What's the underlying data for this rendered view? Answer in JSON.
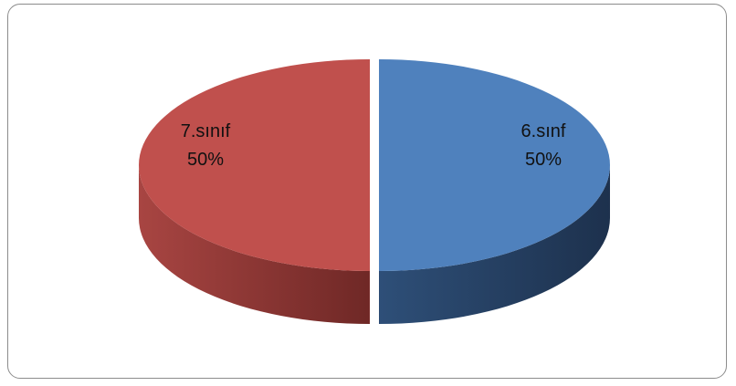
{
  "chart_data": {
    "type": "pie",
    "title": "",
    "slices": [
      {
        "label": "6.sınf",
        "value": 50,
        "percent_label": "50%",
        "color": "#4f81bd",
        "side_color": "#2b4a73"
      },
      {
        "label": "7.sınıf",
        "value": 50,
        "percent_label": "50%",
        "color": "#c0504d",
        "side_color": "#7a2d2b"
      }
    ],
    "style": "3d-exploded",
    "legend": "none"
  }
}
